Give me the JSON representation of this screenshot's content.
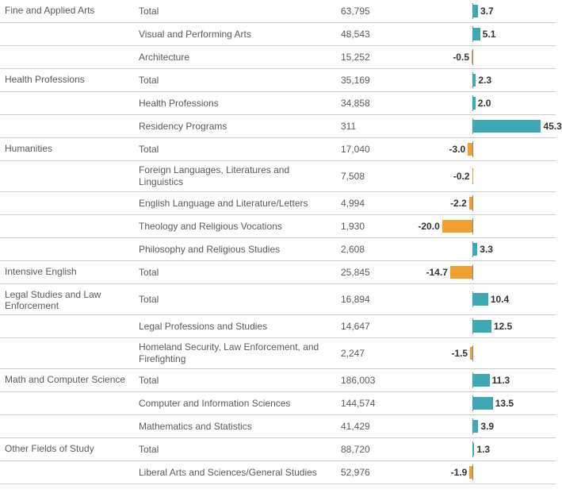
{
  "chart": {
    "axis_pos_pct": 45,
    "scale_pct_per_unit": 1.0,
    "pos_color": "#3ea8b5",
    "neg_color": "#f0a030",
    "axis_color": "#888888",
    "label_fontsize": 12,
    "value_fontsize": 12,
    "text_color": "#5a5a5a",
    "border_color": "#cccccc"
  },
  "rows": [
    {
      "category": "Fine and Applied Arts",
      "sub": "Total",
      "value": "63,795",
      "pct": 3.7
    },
    {
      "category": "",
      "sub": "Visual and Performing Arts",
      "value": "48,543",
      "pct": 5.1
    },
    {
      "category": "",
      "sub": "Architecture",
      "value": "15,252",
      "pct": -0.5
    },
    {
      "category": "Health Professions",
      "sub": "Total",
      "value": "35,169",
      "pct": 2.3
    },
    {
      "category": "",
      "sub": "Health Professions",
      "value": "34,858",
      "pct": 2.0
    },
    {
      "category": "",
      "sub": "Residency Programs",
      "value": "311",
      "pct": 45.3
    },
    {
      "category": "Humanities",
      "sub": "Total",
      "value": "17,040",
      "pct": -3.0
    },
    {
      "category": "",
      "sub": "Foreign Languages, Literatures and Linguistics",
      "value": "7,508",
      "pct": -0.2
    },
    {
      "category": "",
      "sub": "English Language and Literature/Letters",
      "value": "4,994",
      "pct": -2.2
    },
    {
      "category": "",
      "sub": "Theology and Religious Vocations",
      "value": "1,930",
      "pct": -20.0
    },
    {
      "category": "",
      "sub": "Philosophy and Religious Studies",
      "value": "2,608",
      "pct": 3.3
    },
    {
      "category": "Intensive English",
      "sub": "Total",
      "value": "25,845",
      "pct": -14.7
    },
    {
      "category": "Legal Studies and Law Enforcement",
      "sub": "Total",
      "value": "16,894",
      "pct": 10.4
    },
    {
      "category": "",
      "sub": "Legal Professions and Studies",
      "value": "14,647",
      "pct": 12.5
    },
    {
      "category": "",
      "sub": "Homeland Security, Law Enforcement, and Firefighting",
      "value": "2,247",
      "pct": -1.5
    },
    {
      "category": "Math and Computer Science",
      "sub": "Total",
      "value": "186,003",
      "pct": 11.3
    },
    {
      "category": "",
      "sub": "Computer and Information Sciences",
      "value": "144,574",
      "pct": 13.5
    },
    {
      "category": "",
      "sub": "Mathematics and Statistics",
      "value": "41,429",
      "pct": 3.9
    },
    {
      "category": "Other Fields of Study",
      "sub": "Total",
      "value": "88,720",
      "pct": 1.3
    },
    {
      "category": "",
      "sub": "Liberal Arts and Sciences/General Studies",
      "value": "52,976",
      "pct": -1.9
    }
  ]
}
